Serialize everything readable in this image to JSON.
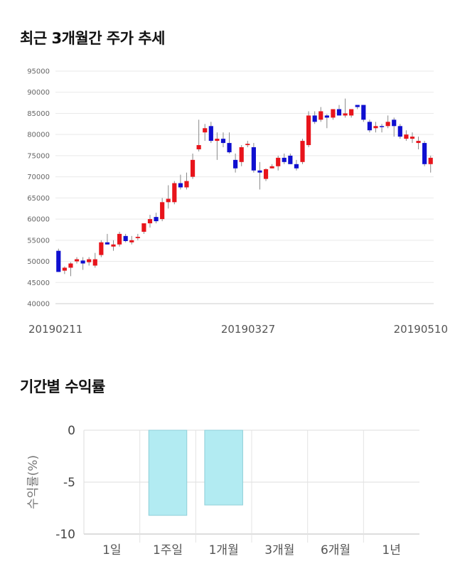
{
  "sections": {
    "price_title": "최근 3개월간 주가 추세",
    "return_title": "기간별 수익률"
  },
  "chart_data": [
    {
      "type": "candlestick",
      "title": "최근 3개월간 주가 추세",
      "ylim": [
        40000,
        95000
      ],
      "y_ticks": [
        40000,
        45000,
        50000,
        55000,
        60000,
        65000,
        70000,
        75000,
        80000,
        85000,
        90000,
        95000
      ],
      "x_labels": [
        "20190211",
        "20190327",
        "20190510"
      ],
      "grid": true,
      "colors": {
        "up": "#e8141b",
        "down": "#0f0fd0",
        "wick": "#888888"
      },
      "candles": [
        [
          52500,
          53000,
          47500,
          47500
        ],
        [
          47800,
          48800,
          47000,
          48500
        ],
        [
          48500,
          49800,
          46500,
          49500
        ],
        [
          50000,
          51000,
          49500,
          50500
        ],
        [
          50200,
          51000,
          48000,
          49500
        ],
        [
          49800,
          51000,
          49000,
          50500
        ],
        [
          49000,
          52000,
          48500,
          50500
        ],
        [
          51500,
          55000,
          51000,
          54500
        ],
        [
          54500,
          56500,
          54000,
          54000
        ],
        [
          53500,
          55000,
          52500,
          54000
        ],
        [
          54000,
          57000,
          53500,
          56500
        ],
        [
          56000,
          56500,
          54500,
          54800
        ],
        [
          54500,
          56000,
          54000,
          55000
        ],
        [
          55500,
          56500,
          55000,
          55800
        ],
        [
          57000,
          59000,
          56500,
          59000
        ],
        [
          59000,
          61000,
          58000,
          60000
        ],
        [
          60500,
          61500,
          59000,
          59500
        ],
        [
          60000,
          65000,
          59500,
          64000
        ],
        [
          64000,
          68000,
          62500,
          64800
        ],
        [
          64000,
          69000,
          63500,
          68500
        ],
        [
          68500,
          70500,
          67000,
          67500
        ],
        [
          67500,
          71000,
          67000,
          69000
        ],
        [
          70000,
          75500,
          69500,
          74000
        ],
        [
          76500,
          83500,
          76000,
          77500
        ],
        [
          80500,
          82500,
          78500,
          81500
        ],
        [
          82000,
          83000,
          78000,
          78500
        ],
        [
          78500,
          80500,
          74000,
          79000
        ],
        [
          79000,
          80500,
          77000,
          78000
        ],
        [
          78000,
          80500,
          75500,
          75800
        ],
        [
          74000,
          75500,
          71000,
          72000
        ],
        [
          73500,
          77500,
          72500,
          77000
        ],
        [
          77500,
          78500,
          77000,
          77800
        ],
        [
          77000,
          78000,
          71000,
          71500
        ],
        [
          71500,
          73500,
          67000,
          71000
        ],
        [
          69500,
          72000,
          69000,
          71800
        ],
        [
          72000,
          73000,
          72000,
          72500
        ],
        [
          72500,
          75000,
          71500,
          74500
        ],
        [
          74500,
          75500,
          73000,
          73500
        ],
        [
          75000,
          75500,
          73000,
          73000
        ],
        [
          73000,
          74000,
          71500,
          72000
        ],
        [
          73500,
          79000,
          73000,
          78500
        ],
        [
          77500,
          85500,
          77000,
          84500
        ],
        [
          84500,
          85500,
          82500,
          83000
        ],
        [
          83500,
          86500,
          83000,
          85500
        ],
        [
          84500,
          84800,
          81500,
          84000
        ],
        [
          84000,
          86000,
          83500,
          86000
        ],
        [
          86000,
          87000,
          84500,
          84500
        ],
        [
          84500,
          88500,
          84000,
          85000
        ],
        [
          84500,
          86000,
          84000,
          86000
        ],
        [
          87000,
          87000,
          86000,
          86500
        ],
        [
          87000,
          87000,
          83000,
          83500
        ],
        [
          83000,
          83500,
          80500,
          81000
        ],
        [
          81500,
          83000,
          80500,
          82000
        ],
        [
          82000,
          82500,
          80500,
          81800
        ],
        [
          82000,
          84500,
          81500,
          83000
        ],
        [
          83500,
          84000,
          79500,
          82000
        ],
        [
          82000,
          82500,
          79000,
          79500
        ],
        [
          79000,
          81000,
          78500,
          80000
        ],
        [
          79000,
          80500,
          78000,
          79500
        ],
        [
          78000,
          79500,
          76500,
          78500
        ],
        [
          78000,
          78500,
          72500,
          73000
        ],
        [
          73000,
          75000,
          71000,
          74500
        ]
      ]
    },
    {
      "type": "bar",
      "title": "기간별 수익률",
      "ylabel": "수익률(%)",
      "categories": [
        "1일",
        "1주일",
        "1개월",
        "3개월",
        "6개월",
        "1년"
      ],
      "values": [
        null,
        -8.2,
        -7.2,
        null,
        null,
        null
      ],
      "ylim": [
        -10,
        0
      ],
      "y_ticks": [
        0,
        -5,
        -10
      ],
      "bar_color": "#b2ebf2",
      "grid": true
    }
  ]
}
